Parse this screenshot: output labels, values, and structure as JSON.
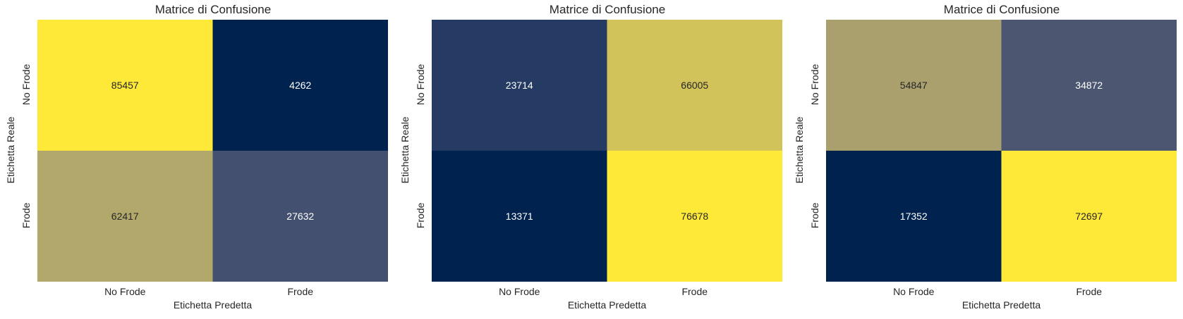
{
  "chart_data": [
    {
      "type": "heatmap",
      "title": "Matrice di Confusione",
      "xlabel": "Etichetta Predetta",
      "ylabel": "Etichetta Reale",
      "x_categories": [
        "No Frode",
        "Frode"
      ],
      "y_categories": [
        "No Frode",
        "Frode"
      ],
      "values": [
        [
          85457,
          4262
        ],
        [
          62417,
          27632
        ]
      ],
      "colormap": "cividis"
    },
    {
      "type": "heatmap",
      "title": "Matrice di Confusione",
      "xlabel": "Etichetta Predetta",
      "ylabel": "Etichetta Reale",
      "x_categories": [
        "No Frode",
        "Frode"
      ],
      "y_categories": [
        "No Frode",
        "Frode"
      ],
      "values": [
        [
          23714,
          66005
        ],
        [
          13371,
          76678
        ]
      ],
      "colormap": "cividis"
    },
    {
      "type": "heatmap",
      "title": "Matrice di Confusione",
      "xlabel": "Etichetta Predetta",
      "ylabel": "Etichetta Reale",
      "x_categories": [
        "No Frode",
        "Frode"
      ],
      "y_categories": [
        "No Frode",
        "Frode"
      ],
      "values": [
        [
          54847,
          34872
        ],
        [
          17352,
          72697
        ]
      ],
      "colormap": "cividis"
    }
  ]
}
